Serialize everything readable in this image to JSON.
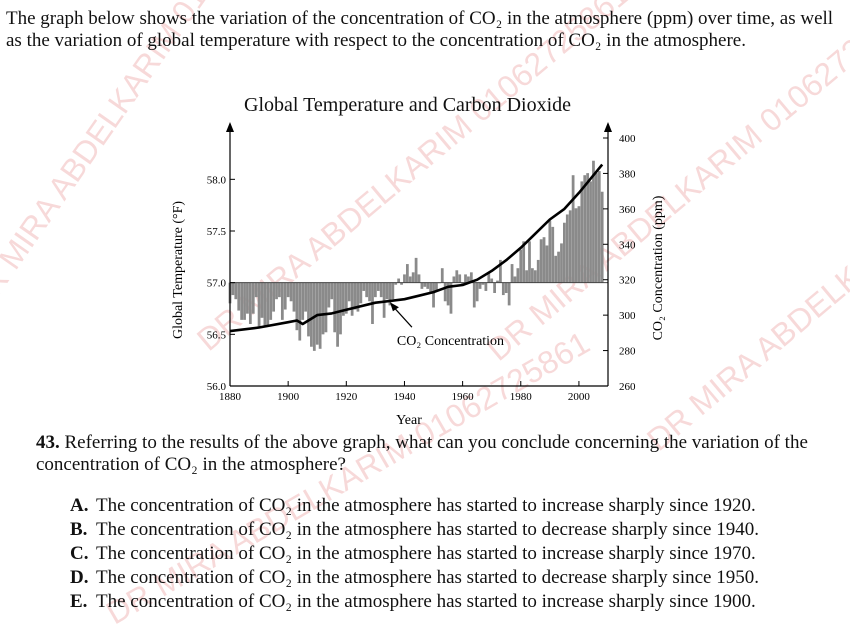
{
  "intro_text": "The graph below shows the variation of the concentration of CO₂ in the atmosphere (ppm) over time, as well as the variation of global temperature with respect to the concentration of CO₂ in the atmosphere.",
  "question": {
    "number": "43.",
    "text": "Referring to the results of the above graph, what can you conclude concerning the variation of the concentration of CO₂ in the atmosphere?"
  },
  "options": [
    {
      "letter": "A.",
      "text": "The concentration of CO₂ in the atmosphere has started to increase sharply since 1920."
    },
    {
      "letter": "B.",
      "text": "The concentration of CO₂ in the atmosphere has started to decrease sharply since 1940."
    },
    {
      "letter": "C.",
      "text": "The concentration of CO₂ in the atmosphere has started to increase sharply since 1970."
    },
    {
      "letter": "D.",
      "text": "The concentration of CO₂ in the atmosphere has started to decrease sharply since 1950."
    },
    {
      "letter": "E.",
      "text": "The concentration of CO₂ in the atmosphere has started to increase sharply since 1900."
    }
  ],
  "watermarks": [
    "DR MIRA ABDELKARIM 01062725861",
    "DR MIRA ABDELKARIM 01062725861",
    "DR MIRA ABDELKARIM 01062725861",
    "DR MIRA ABDELKARIM 01062725861",
    "DR MIRA ABDELKARIM 01062725861"
  ],
  "colors": {
    "bar_fill": "#8a8a8a",
    "line": "#000000",
    "watermark": "#dc5050"
  },
  "chart_data": {
    "type": "bar",
    "title": "Global Temperature and Carbon Dioxide",
    "xlabel": "Year",
    "ylabel": "Global Temperature (°F)",
    "y2label": "CO₂ Concentration (ppm)",
    "annotation": "CO₂ Concentration",
    "xlim": [
      1880,
      2010
    ],
    "ylim": [
      56.0,
      58.4
    ],
    "y2lim": [
      260,
      400
    ],
    "baseline": 57.0,
    "x_ticks": [
      "1880",
      "1900",
      "1920",
      "1940",
      "1960",
      "1980",
      "2000"
    ],
    "y_ticks": [
      "56.0",
      "56.5",
      "57.0",
      "57.5",
      "58.0"
    ],
    "y2_ticks": [
      "260",
      "280",
      "300",
      "320",
      "340",
      "360",
      "380",
      "400"
    ],
    "grid": false,
    "series": [
      {
        "kind": "bar",
        "x": [
          1880,
          1881,
          1882,
          1883,
          1884,
          1885,
          1886,
          1887,
          1888,
          1889,
          1890,
          1891,
          1892,
          1893,
          1894,
          1895,
          1896,
          1897,
          1898,
          1899,
          1900,
          1901,
          1902,
          1903,
          1904,
          1905,
          1906,
          1907,
          1908,
          1909,
          1910,
          1911,
          1912,
          1913,
          1914,
          1915,
          1916,
          1917,
          1918,
          1919,
          1920,
          1921,
          1922,
          1923,
          1924,
          1925,
          1926,
          1927,
          1928,
          1929,
          1930,
          1931,
          1932,
          1933,
          1934,
          1935,
          1936,
          1937,
          1938,
          1939,
          1940,
          1941,
          1942,
          1943,
          1944,
          1945,
          1946,
          1947,
          1948,
          1949,
          1950,
          1951,
          1952,
          1953,
          1954,
          1955,
          1956,
          1957,
          1958,
          1959,
          1960,
          1961,
          1962,
          1963,
          1964,
          1965,
          1966,
          1967,
          1968,
          1969,
          1970,
          1971,
          1972,
          1973,
          1974,
          1975,
          1976,
          1977,
          1978,
          1979,
          1980,
          1981,
          1982,
          1983,
          1984,
          1985,
          1986,
          1987,
          1988,
          1989,
          1990,
          1991,
          1992,
          1993,
          1994,
          1995,
          1996,
          1997,
          1998,
          1999,
          2000,
          2001,
          2002,
          2003,
          2004,
          2005,
          2006,
          2007,
          2008
        ],
        "values": [
          56.8,
          56.88,
          56.84,
          56.73,
          56.64,
          56.64,
          56.7,
          56.6,
          56.7,
          56.86,
          56.56,
          56.66,
          56.58,
          56.58,
          56.64,
          56.72,
          56.84,
          56.86,
          56.64,
          56.74,
          56.86,
          56.82,
          56.72,
          56.54,
          56.44,
          56.64,
          56.72,
          56.48,
          56.38,
          56.34,
          56.4,
          56.36,
          56.5,
          56.52,
          56.76,
          56.84,
          56.52,
          56.38,
          56.5,
          56.68,
          56.7,
          56.82,
          56.68,
          56.74,
          56.72,
          56.8,
          56.92,
          56.86,
          56.82,
          56.6,
          56.86,
          56.92,
          56.86,
          56.66,
          56.84,
          56.78,
          56.84,
          56.98,
          57.04,
          56.98,
          57.08,
          57.18,
          57.06,
          57.1,
          57.24,
          57.08,
          56.94,
          56.96,
          56.94,
          56.9,
          56.76,
          56.92,
          57.0,
          57.14,
          56.82,
          56.78,
          56.7,
          57.06,
          57.12,
          57.08,
          56.98,
          57.08,
          57.06,
          57.1,
          56.76,
          56.82,
          56.94,
          56.98,
          56.92,
          57.1,
          57.04,
          56.9,
          57.02,
          57.22,
          56.88,
          56.9,
          56.78,
          57.18,
          57.06,
          57.14,
          57.32,
          57.4,
          57.12,
          57.4,
          57.14,
          57.12,
          57.22,
          57.42,
          57.44,
          57.36,
          57.6,
          57.54,
          57.26,
          57.3,
          57.38,
          57.58,
          57.66,
          57.7,
          58.04,
          57.72,
          57.74,
          57.98,
          58.04,
          58.06,
          57.98,
          58.18,
          58.06,
          58.08,
          57.88
        ]
      },
      {
        "kind": "line",
        "name": "CO₂ Concentration",
        "x": [
          1880,
          1890,
          1900,
          1903,
          1905,
          1910,
          1915,
          1920,
          1930,
          1940,
          1945,
          1950,
          1955,
          1960,
          1965,
          1970,
          1975,
          1980,
          1985,
          1990,
          1995,
          2000,
          2005,
          2008
        ],
        "values": [
          291,
          293,
          296,
          297,
          295,
          300,
          301,
          303,
          307,
          309,
          311,
          313,
          316,
          317,
          320,
          325,
          331,
          338,
          346,
          354,
          360,
          369,
          379,
          385
        ]
      }
    ]
  }
}
